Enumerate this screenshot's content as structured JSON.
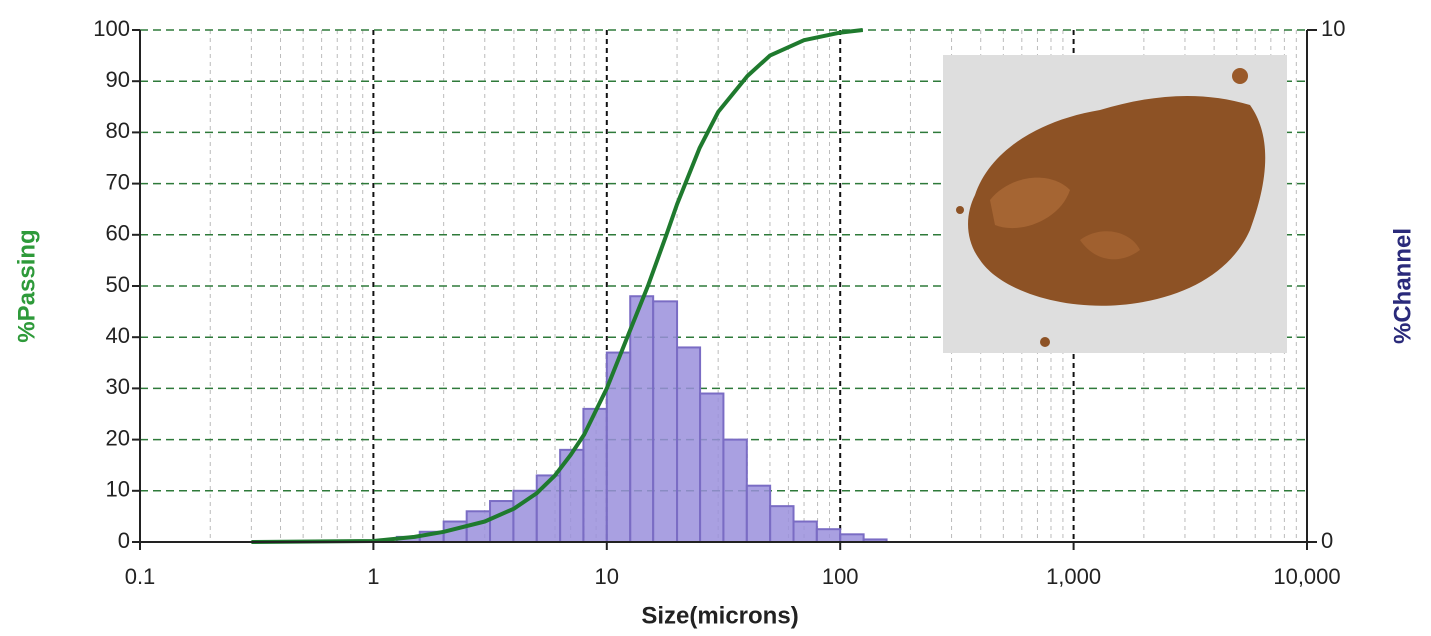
{
  "chart_data": {
    "type": "combo",
    "xlabel": "Size(microns)",
    "ylabel": "%Passing",
    "y2label": "%Channel",
    "xscale": "log",
    "grid": true,
    "xlim": [
      0.1,
      10000
    ],
    "xticks": [
      0.1,
      1,
      10,
      100,
      {
        "value": 1000,
        "label": "1,000"
      },
      {
        "value": 10000,
        "label": "10,000"
      }
    ],
    "ylim": [
      0,
      100
    ],
    "yticks": [
      0,
      10,
      20,
      30,
      40,
      50,
      60,
      70,
      80,
      90,
      100
    ],
    "y2lim": [
      0,
      10
    ],
    "y2ticks": [
      0,
      10
    ],
    "series": [
      {
        "type": "histogram",
        "axis": "y2",
        "color": "#9a8fdc",
        "bins": [
          1.26,
          1.58,
          2,
          2.51,
          3.16,
          3.98,
          5.01,
          6.31,
          7.94,
          10,
          12.6,
          15.8,
          20,
          25.1,
          31.6,
          39.8,
          50.1,
          63.1,
          79.4,
          100,
          126,
          158
        ],
        "values": [
          0.1,
          0.2,
          0.4,
          0.6,
          0.8,
          1.0,
          1.3,
          1.8,
          2.6,
          3.7,
          4.8,
          4.7,
          3.8,
          2.9,
          2.0,
          1.1,
          0.7,
          0.4,
          0.25,
          0.15,
          0.05
        ]
      },
      {
        "type": "line",
        "color": "#1f7a2e",
        "x": [
          0.3,
          1,
          1.5,
          2,
          3,
          4,
          5,
          6,
          7,
          8,
          10,
          12,
          15,
          18,
          20,
          25,
          30,
          40,
          50,
          70,
          100,
          125
        ],
        "values": [
          0,
          0.2,
          1,
          2,
          4,
          6.5,
          9.5,
          13,
          17,
          21,
          30,
          39,
          50,
          60,
          66,
          77,
          84,
          91,
          95,
          98,
          99.5,
          100
        ]
      }
    ]
  }
}
